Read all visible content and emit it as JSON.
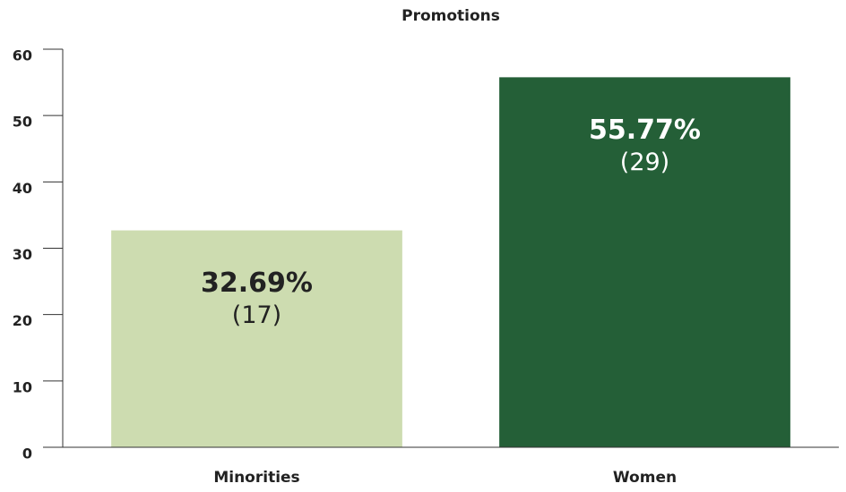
{
  "chart_data": {
    "type": "bar",
    "title": "Promotions",
    "categories": [
      "Minorities",
      "Women"
    ],
    "values": [
      32.69,
      55.77
    ],
    "value_labels": [
      "32.69%",
      "55.77%"
    ],
    "count_labels": [
      "(17)",
      "(29)"
    ],
    "colors": [
      "#cddcb0",
      "#245f37"
    ],
    "ylim": [
      0,
      60
    ],
    "yticks": [
      0,
      10,
      20,
      30,
      40,
      50,
      60
    ]
  }
}
